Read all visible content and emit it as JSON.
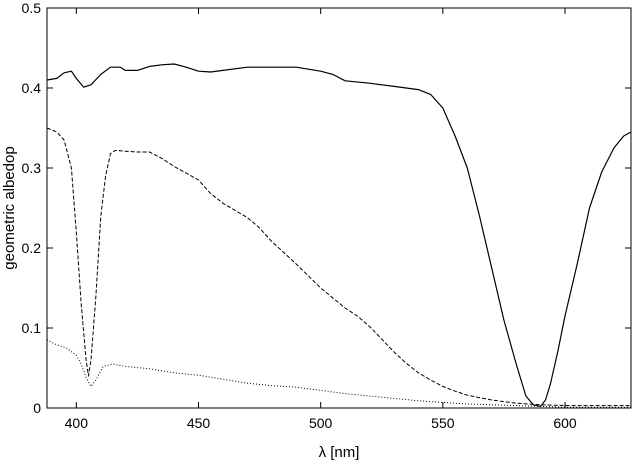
{
  "chart_data": {
    "type": "line",
    "xlabel": "λ [nm]",
    "ylabel": "geometric albedop",
    "xlim": [
      388,
      627
    ],
    "ylim": [
      0,
      0.5
    ],
    "xticks": [
      400,
      450,
      500,
      550,
      600
    ],
    "yticks": [
      0,
      0.1,
      0.2,
      0.3,
      0.4,
      0.5
    ],
    "xtick_labels": [
      "400",
      "450",
      "500",
      "550",
      "600"
    ],
    "ytick_labels": [
      "0",
      "0.1",
      "0.2",
      "0.3",
      "0.4",
      "0.5"
    ],
    "grid": false,
    "legend": "none",
    "series": [
      {
        "line_style": "solid",
        "points": [
          [
            388,
            0.41
          ],
          [
            392,
            0.412
          ],
          [
            395,
            0.419
          ],
          [
            398,
            0.421
          ],
          [
            400,
            0.412
          ],
          [
            403,
            0.401
          ],
          [
            406,
            0.404
          ],
          [
            410,
            0.417
          ],
          [
            414,
            0.426
          ],
          [
            418,
            0.426
          ],
          [
            420,
            0.422
          ],
          [
            425,
            0.422
          ],
          [
            430,
            0.427
          ],
          [
            435,
            0.429
          ],
          [
            440,
            0.43
          ],
          [
            445,
            0.426
          ],
          [
            450,
            0.421
          ],
          [
            455,
            0.42
          ],
          [
            460,
            0.422
          ],
          [
            470,
            0.426
          ],
          [
            480,
            0.426
          ],
          [
            490,
            0.426
          ],
          [
            500,
            0.421
          ],
          [
            505,
            0.417
          ],
          [
            510,
            0.409
          ],
          [
            520,
            0.406
          ],
          [
            530,
            0.402
          ],
          [
            540,
            0.398
          ],
          [
            545,
            0.392
          ],
          [
            550,
            0.375
          ],
          [
            555,
            0.34
          ],
          [
            560,
            0.3
          ],
          [
            565,
            0.24
          ],
          [
            570,
            0.175
          ],
          [
            575,
            0.11
          ],
          [
            580,
            0.055
          ],
          [
            584,
            0.015
          ],
          [
            587,
            0.004
          ],
          [
            590,
            0.002
          ],
          [
            592,
            0.01
          ],
          [
            594,
            0.03
          ],
          [
            597,
            0.07
          ],
          [
            600,
            0.115
          ],
          [
            605,
            0.18
          ],
          [
            610,
            0.25
          ],
          [
            615,
            0.295
          ],
          [
            620,
            0.325
          ],
          [
            624,
            0.34
          ],
          [
            627,
            0.345
          ]
        ]
      },
      {
        "line_style": "dashed",
        "points": [
          [
            388,
            0.35
          ],
          [
            392,
            0.345
          ],
          [
            395,
            0.335
          ],
          [
            398,
            0.3
          ],
          [
            400,
            0.22
          ],
          [
            402,
            0.13
          ],
          [
            404,
            0.06
          ],
          [
            405,
            0.04
          ],
          [
            406,
            0.06
          ],
          [
            408,
            0.14
          ],
          [
            410,
            0.24
          ],
          [
            412,
            0.29
          ],
          [
            414,
            0.318
          ],
          [
            416,
            0.322
          ],
          [
            420,
            0.321
          ],
          [
            425,
            0.32
          ],
          [
            430,
            0.32
          ],
          [
            435,
            0.312
          ],
          [
            440,
            0.302
          ],
          [
            450,
            0.285
          ],
          [
            455,
            0.268
          ],
          [
            460,
            0.256
          ],
          [
            470,
            0.238
          ],
          [
            475,
            0.225
          ],
          [
            480,
            0.208
          ],
          [
            490,
            0.18
          ],
          [
            495,
            0.165
          ],
          [
            500,
            0.15
          ],
          [
            510,
            0.125
          ],
          [
            515,
            0.115
          ],
          [
            520,
            0.102
          ],
          [
            525,
            0.086
          ],
          [
            530,
            0.07
          ],
          [
            535,
            0.056
          ],
          [
            540,
            0.044
          ],
          [
            545,
            0.035
          ],
          [
            550,
            0.027
          ],
          [
            555,
            0.021
          ],
          [
            560,
            0.016
          ],
          [
            570,
            0.01
          ],
          [
            580,
            0.006
          ],
          [
            590,
            0.004
          ],
          [
            600,
            0.003
          ],
          [
            610,
            0.003
          ],
          [
            627,
            0.003
          ]
        ]
      },
      {
        "line_style": "dotted",
        "points": [
          [
            388,
            0.085
          ],
          [
            392,
            0.079
          ],
          [
            396,
            0.075
          ],
          [
            400,
            0.066
          ],
          [
            402,
            0.055
          ],
          [
            404,
            0.038
          ],
          [
            406,
            0.027
          ],
          [
            408,
            0.035
          ],
          [
            411,
            0.052
          ],
          [
            415,
            0.055
          ],
          [
            420,
            0.052
          ],
          [
            430,
            0.049
          ],
          [
            440,
            0.044
          ],
          [
            450,
            0.041
          ],
          [
            460,
            0.036
          ],
          [
            470,
            0.031
          ],
          [
            480,
            0.028
          ],
          [
            490,
            0.026
          ],
          [
            500,
            0.022
          ],
          [
            510,
            0.018
          ],
          [
            520,
            0.015
          ],
          [
            530,
            0.012
          ],
          [
            540,
            0.009
          ],
          [
            550,
            0.007
          ],
          [
            560,
            0.005
          ],
          [
            570,
            0.004
          ],
          [
            580,
            0.003
          ],
          [
            590,
            0.002
          ],
          [
            600,
            0.001
          ],
          [
            627,
            0.001
          ]
        ]
      }
    ]
  }
}
